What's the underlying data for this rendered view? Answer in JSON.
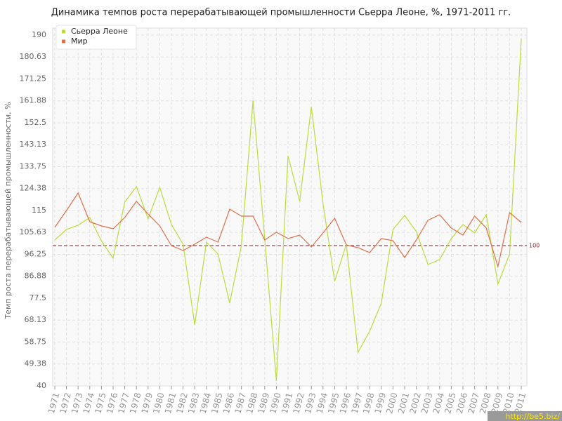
{
  "chart_data": {
    "type": "line",
    "title": "Динамика темпов роста перерабатывающей промышленности Сьерра Леоне, %, 1971-2011 гг.",
    "y_label": "Темп роста перерабатывающей промышленности, %",
    "categories": [
      "1971",
      "1972",
      "1973",
      "1974",
      "1975",
      "1976",
      "1977",
      "1978",
      "1979",
      "1980",
      "1981",
      "1982",
      "1983",
      "1984",
      "1985",
      "1986",
      "1987",
      "1988",
      "1989",
      "1990",
      "1991",
      "1992",
      "1993",
      "1994",
      "1995",
      "1996",
      "1997",
      "1998",
      "1999",
      "2000",
      "2001",
      "2002",
      "2003",
      "2004",
      "2005",
      "2006",
      "2007",
      "2008",
      "2009",
      "2010",
      "2011"
    ],
    "series": [
      {
        "name": "Сьерра Леоне",
        "color": "#bcdc3c",
        "values": [
          102.4,
          106.9,
          108.7,
          112,
          102,
          94.6,
          118.6,
          125.2,
          111.4,
          124.9,
          109,
          100.6,
          66.1,
          101.5,
          96.4,
          75.4,
          100,
          162.1,
          103,
          42.1,
          138.4,
          118.9,
          159.4,
          118,
          84.7,
          100.6,
          54.4,
          63.4,
          75.4,
          106.9,
          112.9,
          106,
          91.9,
          94,
          103,
          109,
          105.4,
          113.2,
          83.5,
          96.4,
          188.5
        ]
      },
      {
        "name": "Мир",
        "color": "#e0704a",
        "values": [
          107.8,
          115,
          122.5,
          110.2,
          108.4,
          107.2,
          112,
          118.9,
          113.5,
          108.4,
          100,
          97.9,
          100.6,
          103.6,
          101.5,
          115.6,
          112.6,
          112.6,
          102.4,
          105.7,
          103,
          104.5,
          99.4,
          105.4,
          111.7,
          100.3,
          99.1,
          97,
          103,
          102.1,
          94.9,
          102.4,
          110.8,
          113.2,
          107.5,
          104.5,
          112.6,
          107.5,
          91,
          114.1,
          109.9
        ]
      }
    ],
    "ylim": [
      40,
      190
    ],
    "yticks": [
      40,
      49.38,
      58.75,
      68.13,
      77.5,
      86.88,
      96.25,
      105.63,
      115,
      124.38,
      133.75,
      143.13,
      152.5,
      161.88,
      171.25,
      180.63,
      190
    ],
    "grid": true,
    "reference_line": 100,
    "reference_color": "#8b1a2b",
    "legend": "top-left",
    "watermark": "http://be5.biz/"
  }
}
